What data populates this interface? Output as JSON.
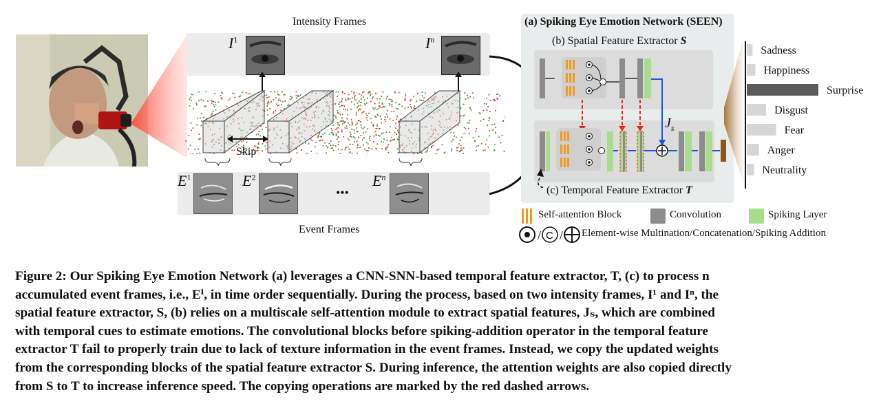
{
  "figure": {
    "intensity_frames_label": "Intensity Frames",
    "event_frames_label": "Event Frames",
    "intensity_first": "I",
    "intensity_first_sup": "1",
    "intensity_last": "I",
    "intensity_last_sup": "n",
    "event_labels": [
      {
        "base": "E",
        "sup": "1"
      },
      {
        "base": "E",
        "sup": "2"
      },
      {
        "base": "E",
        "sup": "n"
      }
    ],
    "ellipsis": "•••",
    "skip_label": "Skip",
    "seen_title": "(a) Spiking Eye Emotion Network (SEEN)",
    "spatial_title": "(b) Spatial Feature Extractor ",
    "spatial_symbol": "S",
    "temporal_title": "(c) Temporal Feature Extractor ",
    "temporal_symbol": "T",
    "js_label": "J",
    "js_sub": "s",
    "classes": [
      {
        "label": "Sadness",
        "score": 0.08
      },
      {
        "label": "Happiness",
        "score": 0.12
      },
      {
        "label": "Surprise",
        "score": 1.0
      },
      {
        "label": "Disgust",
        "score": 0.27
      },
      {
        "label": "Fear",
        "score": 0.41
      },
      {
        "label": "Anger",
        "score": 0.17
      },
      {
        "label": "Neutrality",
        "score": 0.1
      }
    ],
    "legend": {
      "self_attention": "Self-attention Block",
      "convolution": "Convolution",
      "spiking_layer": "Spiking Layer",
      "operators": "Element-wise Multination/Concatenation/Spiking Addition"
    },
    "colors": {
      "convolution": "#8c8c8c",
      "spiking": "#a9dc8d",
      "attention": "#f29a1d",
      "copy_arrow": "#e8281b",
      "feature_arrow": "#1f55d6",
      "event_red": "#d93a2e",
      "event_green": "#2f9a3a",
      "surprise_bar": "#5a5a5a",
      "other_bar": "#d6d6d6"
    }
  },
  "caption": {
    "lines": [
      "Figure 2: Our Spiking Eye Emotion Network (a) leverages a CNN-SNN-based temporal feature extractor, T, (c) to process n",
      "accumulated event frames, i.e., Eⁱ, in time order sequentially. During the process, based on two intensity frames, I¹ and Iⁿ, the",
      "spatial feature extractor, S, (b) relies on a multiscale self-attention module to extract spatial features, Jₛ, which are combined",
      "with temporal cues to estimate emotions. The convolutional blocks before spiking-addition operator in the temporal feature",
      "extractor T fail to properly train due to lack of texture information in the event frames. Instead, we copy the updated weights",
      "from the corresponding blocks of the spatial feature extractor S. During inference, the attention weights are also copied directly",
      "from S to T to increase inference speed. The copying operations are marked by the red dashed arrows."
    ]
  }
}
